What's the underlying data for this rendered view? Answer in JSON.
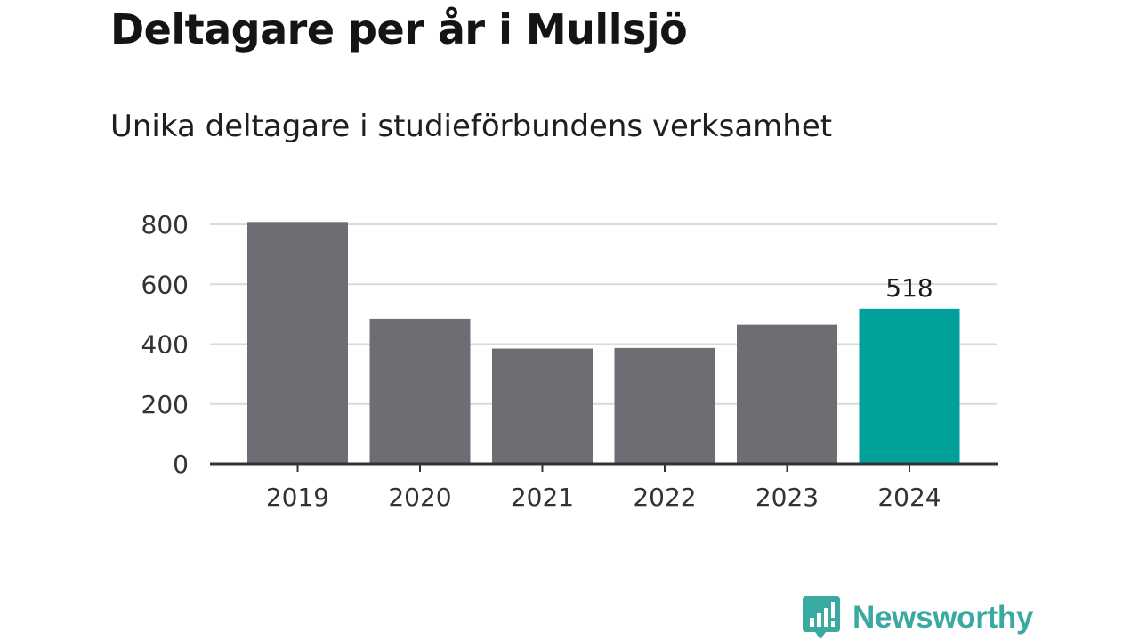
{
  "title": "Deltagare per år i Mullsjö",
  "subtitle": "Unika deltagare i studieförbundens verksamhet",
  "brand": {
    "name": "Newsworthy",
    "icon": "newsworthy-logo-icon",
    "color": "#3aa9a0"
  },
  "colors": {
    "bar": "#6e6d73",
    "highlight": "#00a19a",
    "grid": "#d9d9d9",
    "axis": "#333333"
  },
  "chart_data": {
    "type": "bar",
    "categories": [
      "2019",
      "2020",
      "2021",
      "2022",
      "2023",
      "2024"
    ],
    "values": [
      808,
      485,
      385,
      387,
      465,
      518
    ],
    "highlight_index": 5,
    "data_labels": {
      "5": "518"
    },
    "yticks": [
      "0",
      "200",
      "400",
      "600",
      "800"
    ],
    "ylim": [
      0,
      800
    ],
    "grid": true,
    "legend": "none",
    "xlabel": "",
    "ylabel": ""
  }
}
